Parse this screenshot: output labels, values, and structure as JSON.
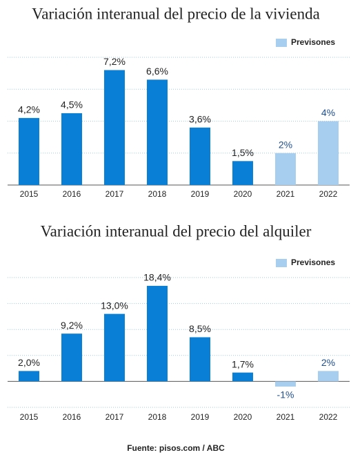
{
  "chart_data": [
    {
      "type": "bar",
      "title": "Variación interanual del precio de la vivienda",
      "categories": [
        "2015",
        "2016",
        "2017",
        "2018",
        "2019",
        "2020",
        "2021",
        "2022"
      ],
      "values": [
        4.2,
        4.5,
        7.2,
        6.6,
        3.6,
        1.5,
        2,
        4
      ],
      "value_labels": [
        "4,2%",
        "4,5%",
        "7,2%",
        "6,6%",
        "3,6%",
        "1,5%",
        "2%",
        "4%"
      ],
      "colors": [
        "#0a7fd6",
        "#0a7fd6",
        "#0a7fd6",
        "#0a7fd6",
        "#0a7fd6",
        "#0a7fd6",
        "#a7cdef",
        "#a7cdef"
      ],
      "value_label_colors": [
        "#222222",
        "#222222",
        "#222222",
        "#222222",
        "#222222",
        "#222222",
        "#1f4e8c",
        "#1f4e8c"
      ],
      "legend": {
        "label": "Previsones",
        "color": "#a7cdef"
      },
      "ylim": [
        0,
        8
      ],
      "yticks": [
        0,
        2,
        4,
        6,
        8
      ],
      "grid": true
    },
    {
      "type": "bar",
      "title": "Variación interanual del precio del alquiler",
      "categories": [
        "2015",
        "2016",
        "2017",
        "2018",
        "2019",
        "2020",
        "2021",
        "2022"
      ],
      "values": [
        2.0,
        9.2,
        13.0,
        18.4,
        8.5,
        1.7,
        -1,
        2
      ],
      "value_labels": [
        "2,0%",
        "9,2%",
        "13,0%",
        "18,4%",
        "8,5%",
        "1,7%",
        "-1%",
        "2%"
      ],
      "colors": [
        "#0a7fd6",
        "#0a7fd6",
        "#0a7fd6",
        "#0a7fd6",
        "#0a7fd6",
        "#0a7fd6",
        "#a7cdef",
        "#a7cdef"
      ],
      "value_label_colors": [
        "#222222",
        "#222222",
        "#222222",
        "#222222",
        "#222222",
        "#222222",
        "#1f4e8c",
        "#1f4e8c"
      ],
      "legend": {
        "label": "Previsones",
        "color": "#a7cdef"
      },
      "ylim": [
        -5,
        20
      ],
      "yticks": [
        -5,
        0,
        5,
        10,
        15,
        20
      ],
      "grid": true
    }
  ],
  "source": "Fuente: pisos.com / ABC"
}
